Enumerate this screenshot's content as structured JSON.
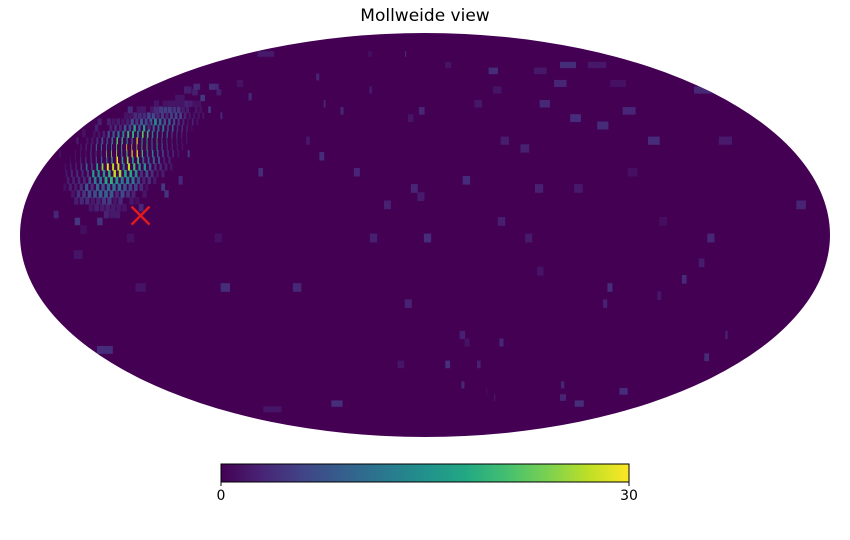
{
  "chart_data": {
    "type": "heatmap",
    "projection": "mollweide",
    "title": "Mollweide view",
    "colormap": "viridis",
    "background_value": 0,
    "colorbar": {
      "min": 0,
      "max": 30,
      "tick_labels": [
        "0",
        "30"
      ],
      "placement": "bottom"
    },
    "hotspot": {
      "lon_deg": 145,
      "lat_deg": 30,
      "peak_value": 29,
      "spread_deg": 9
    },
    "marker": {
      "symbol": "x",
      "color": "#e31a1c",
      "lon_deg": 127,
      "lat_deg": 7
    },
    "grid": false,
    "legend": "none"
  }
}
